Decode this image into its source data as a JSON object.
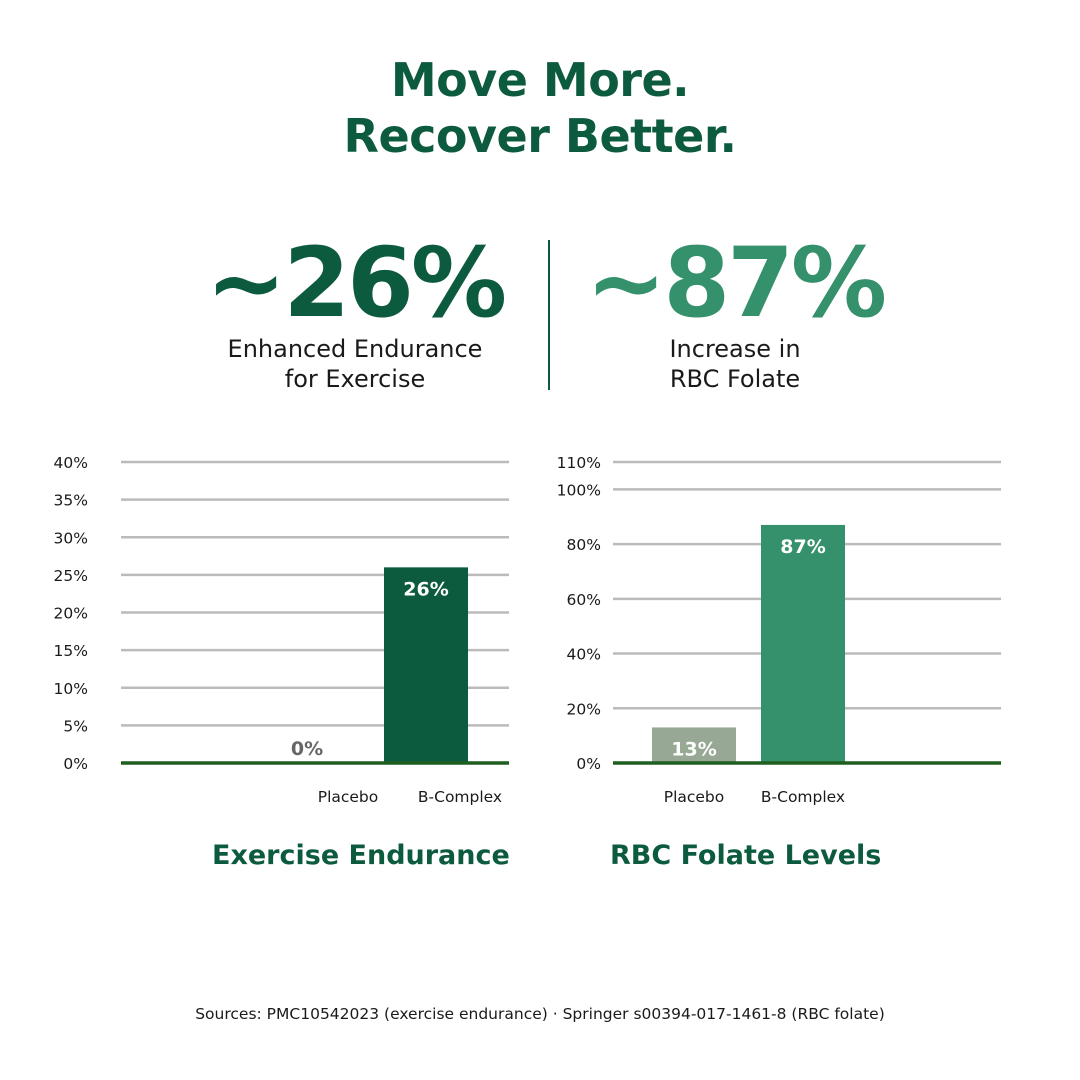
{
  "header": {
    "line1": "Move More.",
    "line2": "Recover Better."
  },
  "stats": [
    {
      "value": "~26%",
      "caption_line1": "Enhanced Endurance",
      "caption_line2": "for Exercise"
    },
    {
      "value": "~87%",
      "caption_line1": "Increase in",
      "caption_line2": "RBC Folate"
    }
  ],
  "colors": {
    "dark_green": "#0d5b3e",
    "mid_green": "#34916b",
    "placebo_gray": "#97a894",
    "grid": "#bbbbbb",
    "baseline": "#1e5e1e"
  },
  "chart_data": [
    {
      "type": "bar",
      "title": "Exercise Endurance",
      "categories": [
        "Placebo",
        "B-Complex"
      ],
      "values": [
        0,
        26
      ],
      "value_labels": [
        "0%",
        "26%"
      ],
      "yticks": [
        0,
        5,
        10,
        15,
        20,
        25,
        30,
        35,
        40
      ],
      "ytick_labels": [
        "0%",
        "5%",
        "10%",
        "15%",
        "20%",
        "25%",
        "30%",
        "35%",
        "40%"
      ],
      "ylim": [
        0,
        40
      ],
      "grid": true
    },
    {
      "type": "bar",
      "title": "RBC Folate Levels",
      "categories": [
        "Placebo",
        "B-Complex"
      ],
      "values": [
        13,
        87
      ],
      "value_labels": [
        "13%",
        "87%"
      ],
      "yticks": [
        0,
        20,
        40,
        60,
        80,
        100,
        110
      ],
      "ytick_labels": [
        "0%",
        "20%",
        "40%",
        "60%",
        "80%",
        "100%",
        "110%"
      ],
      "ylim": [
        0,
        110
      ],
      "grid": true
    }
  ],
  "sources": "Sources: PMC10542023 (exercise endurance) · Springer s00394-017-1461-8 (RBC folate)"
}
